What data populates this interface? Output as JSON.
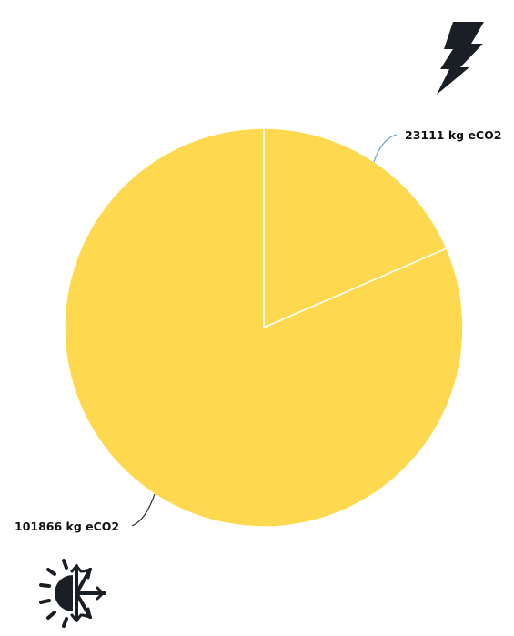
{
  "chart_data": {
    "type": "pie",
    "title": "",
    "unit": "kg eCO2",
    "slices": [
      {
        "value": 23111,
        "label": "23111 kg eCO2",
        "color": "#fed94f",
        "icon": "lightning-bolt-icon"
      },
      {
        "value": 101866,
        "label": "101866 kg eCO2",
        "color": "#fed94f",
        "icon": "sun-snowflake-icon"
      }
    ],
    "slice_border_color": "#ffffff",
    "label_line_colors": [
      "#6aa8d8",
      "#333333"
    ],
    "start_angle": "12 o'clock",
    "direction": "clockwise",
    "legend": "none"
  },
  "icons": {
    "top": "lightning-bolt-icon",
    "bottom": "sun-snowflake-icon",
    "color": "#1a1f26"
  }
}
